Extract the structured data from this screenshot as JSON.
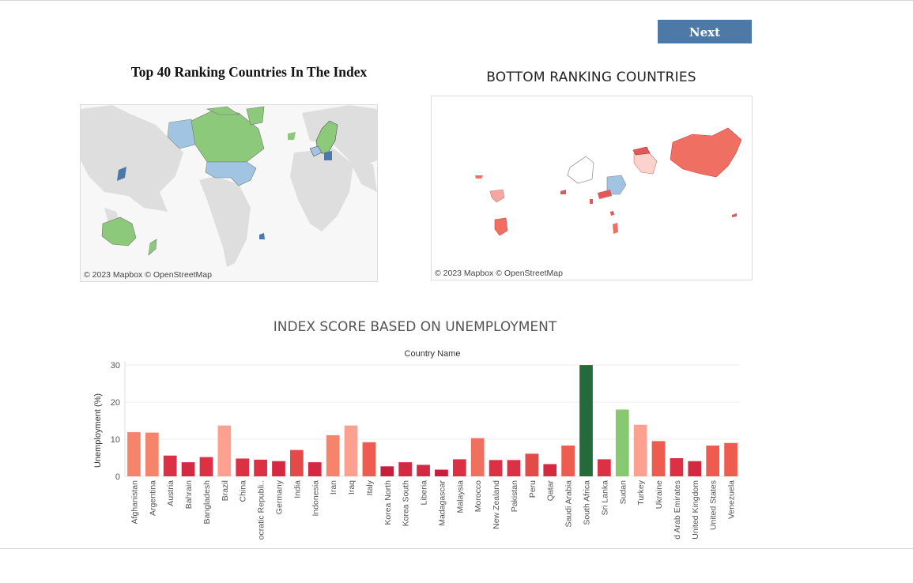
{
  "nav": {
    "next_label": "Next"
  },
  "left_map": {
    "title": "Top 40 Ranking Countries In The Index",
    "attribution": "© 2023 Mapbox  © OpenStreetMap"
  },
  "right_map": {
    "title": "BOTTOM RANKING COUNTRIES",
    "attribution": "© 2023 Mapbox  © OpenStreetMap"
  },
  "chart_data": {
    "type": "bar",
    "title": "INDEX SCORE BASED ON UNEMPLOYMENT",
    "xlabel": "Country Name",
    "ylabel": "Unemployment (%)",
    "ylim": [
      0,
      30
    ],
    "yticks": [
      0,
      10,
      20,
      30
    ],
    "categories": [
      "Afghanistan",
      "Argentina",
      "Austria",
      "Bahrain",
      "Bangladesh",
      "Brazil",
      "China",
      "ocratic Republi..",
      "Germany",
      "India",
      "Indonesia",
      "Iran",
      "Iraq",
      "Italy",
      "Korea North",
      "Korea South",
      "Liberia",
      "Madagascar",
      "Malaysia",
      "Morocco",
      "New Zealand",
      "Pakistan",
      "Peru",
      "Qatar",
      "Saudi Arabia",
      "South Africa",
      "Sri Lanka",
      "Sudan",
      "Turkey",
      "Ukraine",
      "d Arab Emirates",
      "United Kingdom",
      "United States",
      "Venezuela"
    ],
    "values": [
      11.9,
      11.8,
      5.6,
      3.8,
      5.2,
      13.7,
      4.8,
      4.5,
      4.1,
      7.1,
      3.8,
      11.1,
      13.7,
      9.2,
      2.7,
      3.8,
      3.1,
      1.8,
      4.6,
      10.3,
      4.4,
      4.4,
      6.1,
      3.3,
      8.3,
      30.0,
      4.6,
      18.0,
      13.9,
      9.5,
      4.9,
      4.1,
      8.3,
      9.0
    ],
    "colors": [
      "#f4856a",
      "#f4856a",
      "#dc3045",
      "#d42843",
      "#dc3045",
      "#fca08f",
      "#dc3045",
      "#dc3045",
      "#d42843",
      "#e34a4a",
      "#d42843",
      "#f4856a",
      "#fca08f",
      "#ee5c50",
      "#c81e3e",
      "#d42843",
      "#d42843",
      "#c81e3e",
      "#dc3045",
      "#f07060",
      "#dc3045",
      "#dc3045",
      "#e34a4a",
      "#d42843",
      "#ee5c50",
      "#236b39",
      "#dc3045",
      "#88c870",
      "#fca08f",
      "#ee5c50",
      "#dc3045",
      "#d42843",
      "#ee5c50",
      "#ee5c50"
    ],
    "grid": true
  }
}
